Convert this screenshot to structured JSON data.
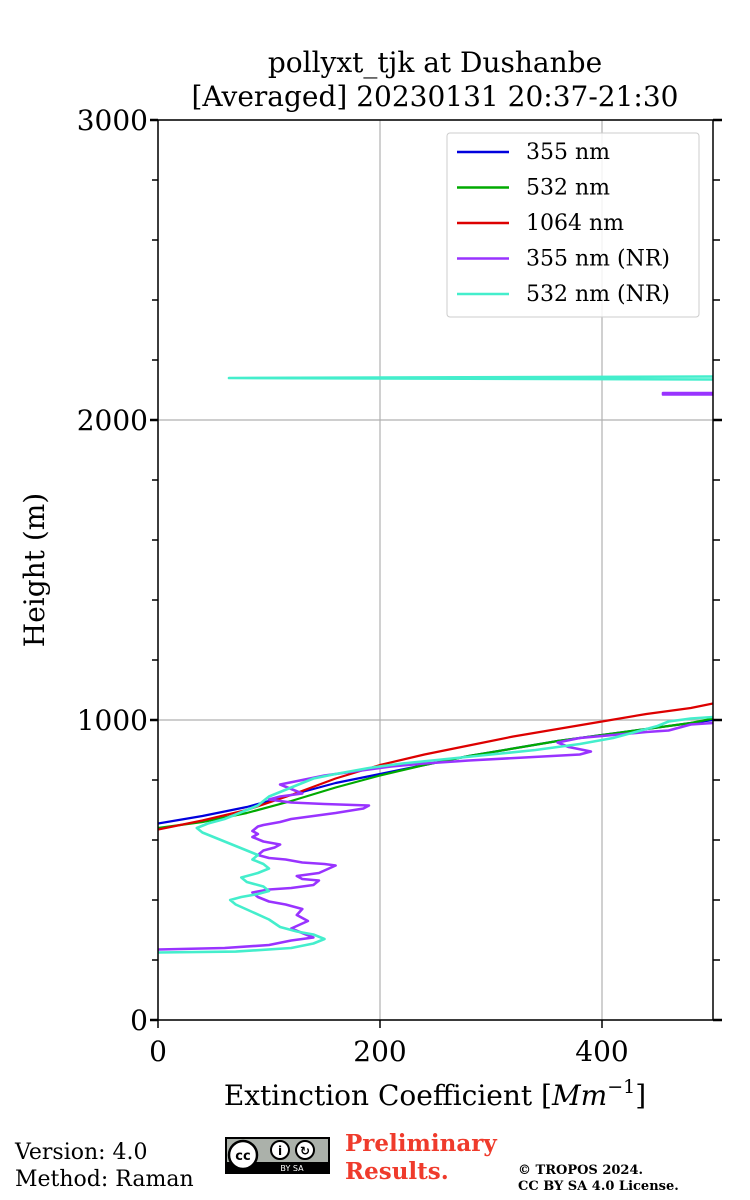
{
  "chart_data": {
    "type": "line",
    "title": [
      "pollyxt_tjk at Dushanbe",
      "[Averaged] 20230131 20:37-21:30"
    ],
    "xlabel": "Extinction Coefficient [",
    "xlabel_unit": "Mm",
    "xlabel_exp": "−1",
    "xlabel_close": "]",
    "ylabel": "Height (m)",
    "xlim": [
      0,
      500
    ],
    "ylim": [
      0,
      3000
    ],
    "xticks": [
      0,
      200,
      400
    ],
    "yticks": [
      0,
      1000,
      2000,
      3000
    ],
    "grid": true,
    "legend_position": "top-right",
    "series": [
      {
        "name": "355 nm",
        "color": "#0000dd",
        "points": [
          [
            0,
            655
          ],
          [
            40,
            680
          ],
          [
            80,
            710
          ],
          [
            120,
            750
          ],
          [
            160,
            790
          ],
          [
            200,
            820
          ],
          [
            240,
            850
          ],
          [
            280,
            880
          ],
          [
            320,
            905
          ],
          [
            360,
            930
          ],
          [
            400,
            950
          ],
          [
            440,
            970
          ],
          [
            480,
            990
          ],
          [
            500,
            1000
          ]
        ]
      },
      {
        "name": "532 nm",
        "color": "#00aa00",
        "points": [
          [
            0,
            640
          ],
          [
            40,
            660
          ],
          [
            80,
            690
          ],
          [
            120,
            730
          ],
          [
            160,
            775
          ],
          [
            200,
            815
          ],
          [
            240,
            850
          ],
          [
            280,
            880
          ],
          [
            320,
            905
          ],
          [
            360,
            930
          ],
          [
            400,
            950
          ],
          [
            440,
            970
          ],
          [
            480,
            990
          ],
          [
            500,
            1005
          ]
        ]
      },
      {
        "name": "1064 nm",
        "color": "#dd0000",
        "points": [
          [
            0,
            635
          ],
          [
            40,
            665
          ],
          [
            80,
            700
          ],
          [
            120,
            750
          ],
          [
            160,
            805
          ],
          [
            200,
            850
          ],
          [
            240,
            885
          ],
          [
            280,
            915
          ],
          [
            320,
            945
          ],
          [
            360,
            970
          ],
          [
            400,
            995
          ],
          [
            440,
            1020
          ],
          [
            480,
            1040
          ],
          [
            500,
            1055
          ]
        ]
      },
      {
        "name": "355 nm (NR)",
        "color": "#9933ff",
        "points": [
          [
            0,
            235
          ],
          [
            60,
            240
          ],
          [
            100,
            250
          ],
          [
            120,
            265
          ],
          [
            140,
            275
          ],
          [
            130,
            290
          ],
          [
            120,
            305
          ],
          [
            135,
            330
          ],
          [
            125,
            350
          ],
          [
            130,
            370
          ],
          [
            115,
            385
          ],
          [
            100,
            395
          ],
          [
            90,
            410
          ],
          [
            85,
            425
          ],
          [
            100,
            435
          ],
          [
            120,
            440
          ],
          [
            140,
            450
          ],
          [
            145,
            465
          ],
          [
            130,
            470
          ],
          [
            125,
            480
          ],
          [
            145,
            490
          ],
          [
            160,
            515
          ],
          [
            150,
            520
          ],
          [
            130,
            525
          ],
          [
            115,
            535
          ],
          [
            100,
            540
          ],
          [
            90,
            550
          ],
          [
            95,
            565
          ],
          [
            105,
            575
          ],
          [
            110,
            585
          ],
          [
            95,
            595
          ],
          [
            85,
            610
          ],
          [
            90,
            620
          ],
          [
            85,
            630
          ],
          [
            90,
            645
          ],
          [
            95,
            650
          ],
          [
            110,
            660
          ],
          [
            120,
            670
          ],
          [
            140,
            680
          ],
          [
            160,
            690
          ],
          [
            185,
            705
          ],
          [
            190,
            715
          ],
          [
            150,
            720
          ],
          [
            120,
            725
          ],
          [
            100,
            735
          ],
          [
            110,
            745
          ],
          [
            130,
            755
          ],
          [
            120,
            770
          ],
          [
            110,
            785
          ],
          [
            130,
            800
          ],
          [
            150,
            815
          ],
          [
            190,
            835
          ],
          [
            210,
            845
          ],
          [
            240,
            855
          ],
          [
            280,
            865
          ],
          [
            330,
            875
          ],
          [
            380,
            885
          ],
          [
            390,
            895
          ],
          [
            370,
            910
          ],
          [
            360,
            925
          ],
          [
            380,
            940
          ],
          [
            410,
            950
          ],
          [
            440,
            960
          ],
          [
            460,
            965
          ],
          [
            470,
            975
          ],
          [
            480,
            985
          ],
          [
            500,
            990
          ],
          [
            500,
            2085
          ],
          [
            455,
            2085
          ],
          [
            455,
            2090
          ],
          [
            500,
            2090
          ]
        ]
      },
      {
        "name": "532 nm (NR)",
        "color": "#44eecc",
        "points": [
          [
            0,
            225
          ],
          [
            70,
            228
          ],
          [
            120,
            240
          ],
          [
            140,
            255
          ],
          [
            150,
            270
          ],
          [
            140,
            285
          ],
          [
            125,
            295
          ],
          [
            110,
            310
          ],
          [
            100,
            335
          ],
          [
            85,
            360
          ],
          [
            70,
            385
          ],
          [
            65,
            400
          ],
          [
            75,
            410
          ],
          [
            90,
            420
          ],
          [
            100,
            430
          ],
          [
            95,
            445
          ],
          [
            80,
            460
          ],
          [
            75,
            475
          ],
          [
            90,
            490
          ],
          [
            100,
            505
          ],
          [
            95,
            520
          ],
          [
            85,
            535
          ],
          [
            90,
            550
          ],
          [
            80,
            565
          ],
          [
            70,
            580
          ],
          [
            60,
            595
          ],
          [
            50,
            610
          ],
          [
            40,
            625
          ],
          [
            35,
            640
          ],
          [
            45,
            655
          ],
          [
            60,
            670
          ],
          [
            70,
            685
          ],
          [
            80,
            700
          ],
          [
            90,
            715
          ],
          [
            95,
            730
          ],
          [
            100,
            745
          ],
          [
            110,
            760
          ],
          [
            120,
            775
          ],
          [
            130,
            790
          ],
          [
            140,
            805
          ],
          [
            160,
            820
          ],
          [
            190,
            840
          ],
          [
            220,
            855
          ],
          [
            260,
            870
          ],
          [
            300,
            885
          ],
          [
            340,
            900
          ],
          [
            380,
            920
          ],
          [
            410,
            940
          ],
          [
            430,
            960
          ],
          [
            450,
            980
          ],
          [
            460,
            995
          ],
          [
            480,
            1005
          ],
          [
            500,
            1010
          ],
          [
            500,
            2135
          ],
          [
            64,
            2140
          ],
          [
            500,
            2145
          ]
        ]
      }
    ]
  },
  "footer": {
    "version": "Version: 4.0",
    "method": "Method: Raman",
    "preliminary_line1": "Preliminary",
    "preliminary_line2": "Results.",
    "copyright_line1": "© TROPOS 2024.",
    "copyright_line2": "CC BY SA 4.0 License.",
    "license_badge": "BY  SA"
  }
}
